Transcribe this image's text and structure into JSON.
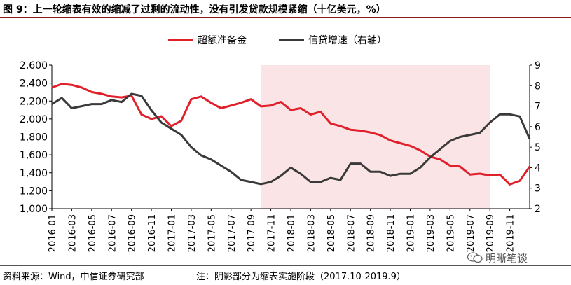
{
  "title": "图 9：上一轮缩表有效的缩减了过剩的流动性，没有引发贷款规模紧缩（十亿美元，%）",
  "source": "资料来源：Wind，中信证券研究部",
  "note": "注：阴影部分为缩表实施阶段（2017.10-2019.9）",
  "watermark": "明晰笔谈",
  "chart_data": {
    "type": "line",
    "legend_position": "top-center",
    "grid": false,
    "x_ticks": [
      "2016-01",
      "2016-03",
      "2016-05",
      "2016-07",
      "2016-09",
      "2016-11",
      "2017-01",
      "2017-03",
      "2017-05",
      "2017-07",
      "2017-09",
      "2017-11",
      "2018-01",
      "2018-03",
      "2018-05",
      "2018-07",
      "2018-09",
      "2018-11",
      "2019-01",
      "2019-03",
      "2019-05",
      "2019-07",
      "2019-09",
      "2019-11"
    ],
    "x_range": [
      "2016-01",
      "2020-01"
    ],
    "y_left": {
      "ticks": [
        "1,000",
        "1,200",
        "1,400",
        "1,600",
        "1,800",
        "2,000",
        "2,200",
        "2,400",
        "2,600"
      ],
      "range": [
        1000,
        2600
      ]
    },
    "y_right": {
      "ticks": [
        "2",
        "3",
        "4",
        "5",
        "6",
        "7",
        "8",
        "9"
      ],
      "range": [
        2,
        9
      ]
    },
    "shaded_region": {
      "start": "2017-10",
      "end": "2019-09",
      "color": "#fbe4e6"
    },
    "series": [
      {
        "name": "超额准备金",
        "axis": "left",
        "color": "#e0202a",
        "dates": [
          "2016-01",
          "2016-02",
          "2016-03",
          "2016-04",
          "2016-05",
          "2016-06",
          "2016-07",
          "2016-08",
          "2016-09",
          "2016-10",
          "2016-11",
          "2016-12",
          "2017-01",
          "2017-02",
          "2017-03",
          "2017-04",
          "2017-05",
          "2017-06",
          "2017-07",
          "2017-08",
          "2017-09",
          "2017-10",
          "2017-11",
          "2017-12",
          "2018-01",
          "2018-02",
          "2018-03",
          "2018-04",
          "2018-05",
          "2018-06",
          "2018-07",
          "2018-08",
          "2018-09",
          "2018-10",
          "2018-11",
          "2018-12",
          "2019-01",
          "2019-02",
          "2019-03",
          "2019-04",
          "2019-05",
          "2019-06",
          "2019-07",
          "2019-08",
          "2019-09",
          "2019-10",
          "2019-11",
          "2019-12",
          "2020-01"
        ],
        "values": [
          2350,
          2390,
          2380,
          2350,
          2300,
          2280,
          2250,
          2240,
          2260,
          2050,
          2000,
          2030,
          1920,
          1980,
          2220,
          2250,
          2180,
          2120,
          2150,
          2180,
          2220,
          2140,
          2150,
          2190,
          2100,
          2120,
          2050,
          2080,
          1950,
          1920,
          1880,
          1870,
          1850,
          1820,
          1760,
          1730,
          1700,
          1650,
          1580,
          1550,
          1480,
          1470,
          1380,
          1390,
          1370,
          1380,
          1270,
          1310,
          1470
        ]
      },
      {
        "name": "信贷增速（右轴）",
        "axis": "right",
        "color": "#3a3a3a",
        "dates": [
          "2016-01",
          "2016-02",
          "2016-03",
          "2016-04",
          "2016-05",
          "2016-06",
          "2016-07",
          "2016-08",
          "2016-09",
          "2016-10",
          "2016-11",
          "2016-12",
          "2017-01",
          "2017-02",
          "2017-03",
          "2017-04",
          "2017-05",
          "2017-06",
          "2017-07",
          "2017-08",
          "2017-09",
          "2017-10",
          "2017-11",
          "2017-12",
          "2018-01",
          "2018-02",
          "2018-03",
          "2018-04",
          "2018-05",
          "2018-06",
          "2018-07",
          "2018-08",
          "2018-09",
          "2018-10",
          "2018-11",
          "2018-12",
          "2019-01",
          "2019-02",
          "2019-03",
          "2019-04",
          "2019-05",
          "2019-06",
          "2019-07",
          "2019-08",
          "2019-09",
          "2019-10",
          "2019-11",
          "2019-12",
          "2020-01"
        ],
        "values": [
          7.1,
          7.4,
          6.9,
          7.0,
          7.1,
          7.1,
          7.3,
          7.2,
          7.6,
          7.5,
          6.8,
          6.2,
          5.9,
          5.6,
          5.0,
          4.6,
          4.4,
          4.1,
          3.8,
          3.4,
          3.3,
          3.2,
          3.3,
          3.6,
          4.0,
          3.7,
          3.3,
          3.3,
          3.5,
          3.4,
          4.2,
          4.2,
          3.8,
          3.8,
          3.6,
          3.7,
          3.7,
          4.0,
          4.5,
          4.9,
          5.3,
          5.5,
          5.6,
          5.7,
          6.2,
          6.6,
          6.6,
          6.5,
          5.4
        ]
      }
    ]
  }
}
